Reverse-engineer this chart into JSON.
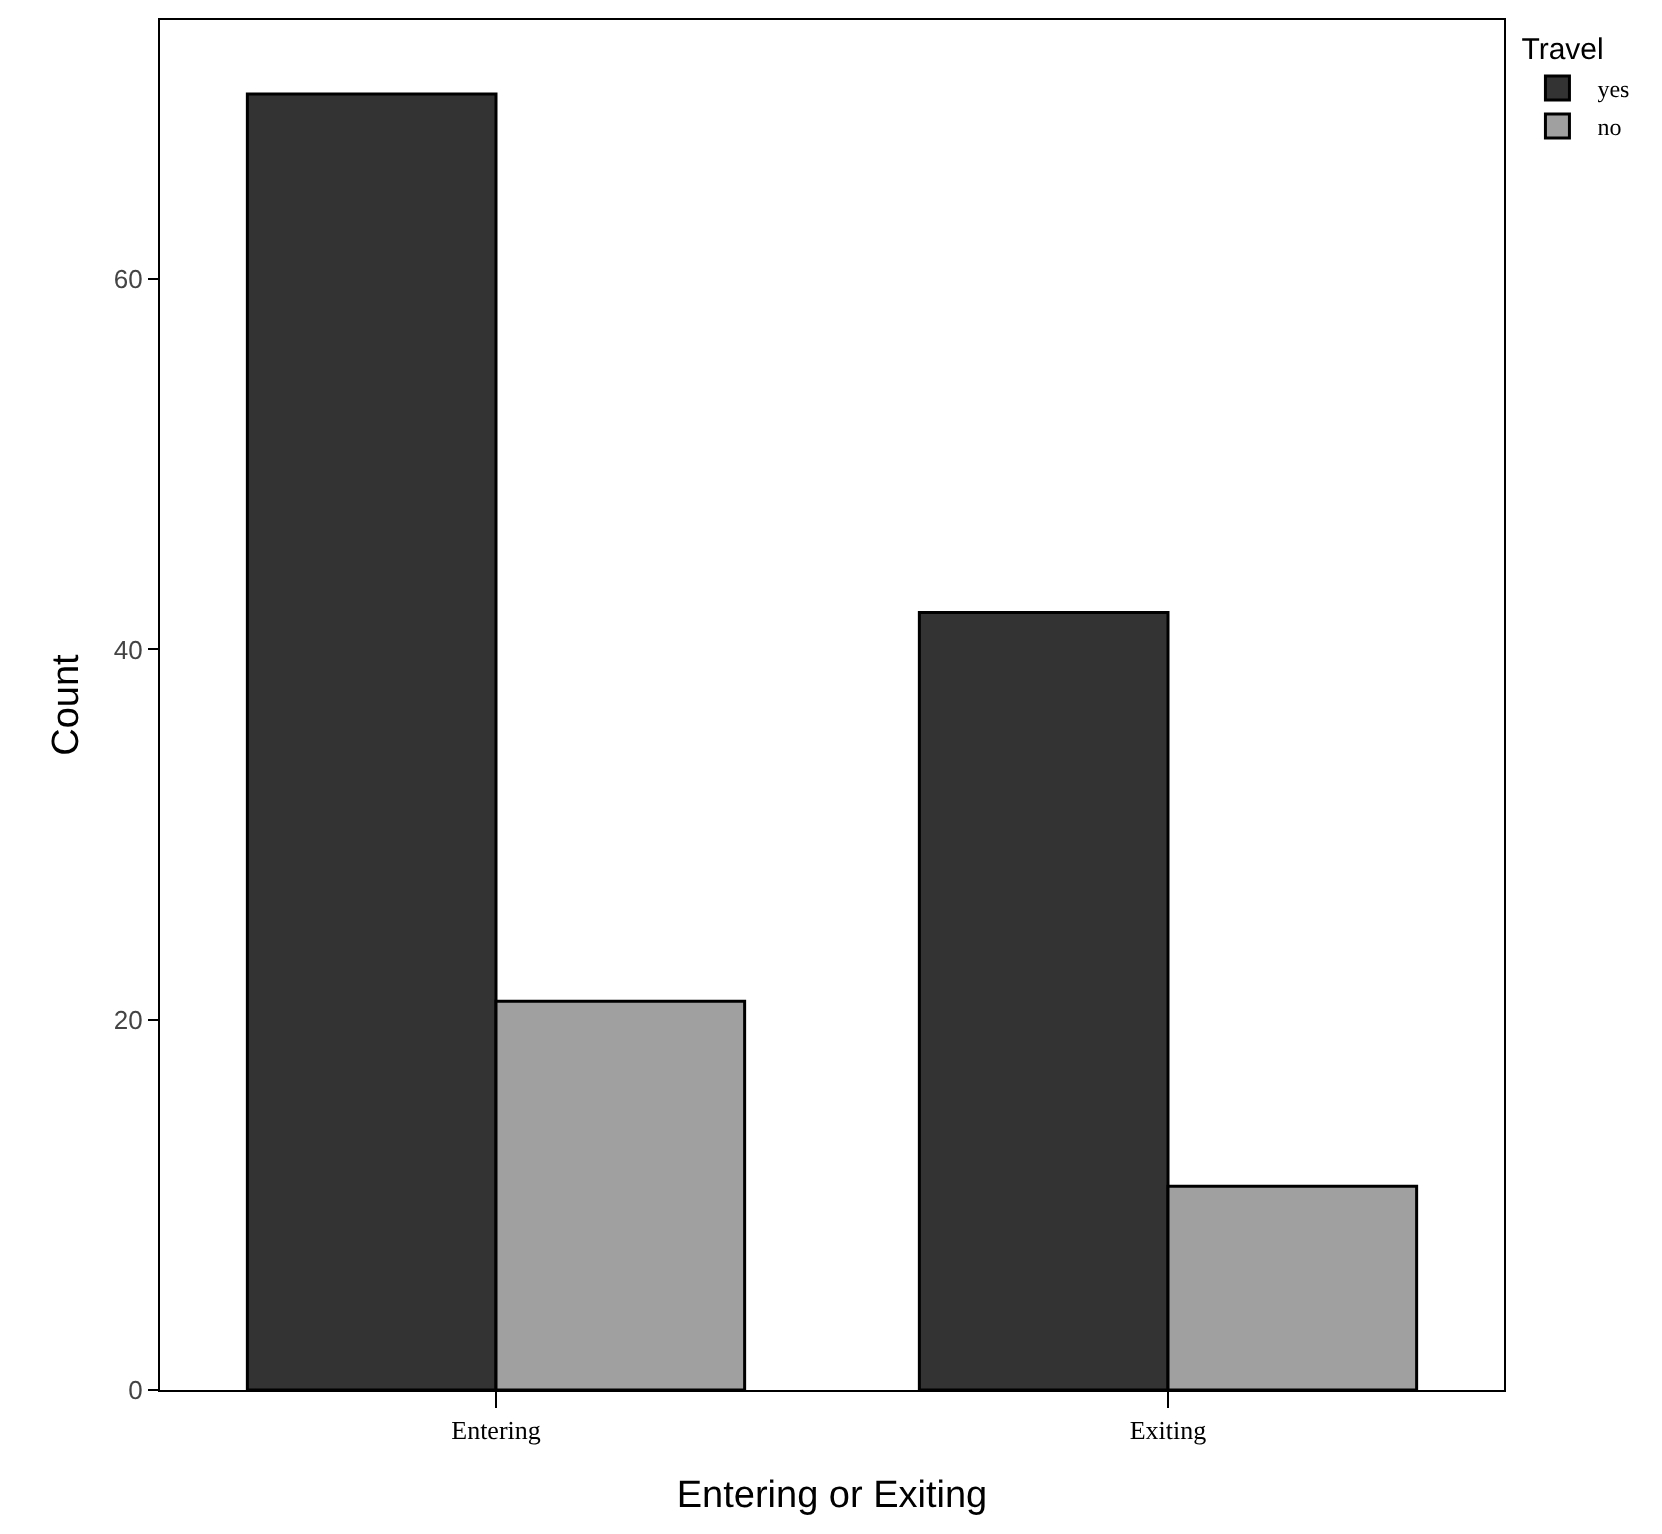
{
  "chart_data": {
    "type": "bar",
    "xlabel": "Entering or Exiting",
    "ylabel": "Count",
    "legend_title": "Travel",
    "categories": [
      "Entering",
      "Exiting"
    ],
    "series": [
      {
        "name": "yes",
        "color": "#333333",
        "values": [
          70,
          42
        ]
      },
      {
        "name": "no",
        "color": "#a0a0a0",
        "values": [
          21,
          11
        ]
      }
    ],
    "ylim": [
      0,
      74
    ],
    "yticks": [
      0,
      20,
      40,
      60
    ],
    "grid": false,
    "legend": "top right"
  }
}
